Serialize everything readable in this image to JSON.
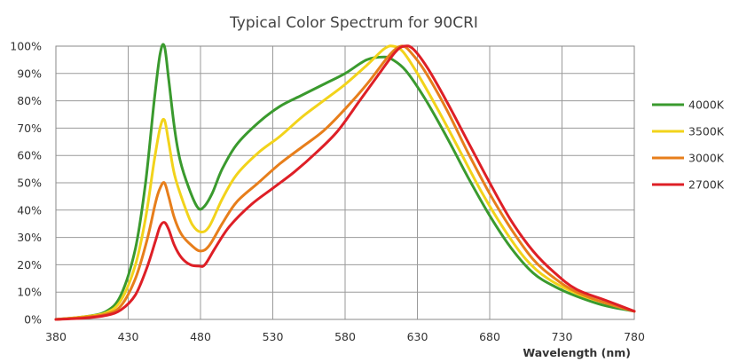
{
  "chart_data": {
    "type": "line",
    "title": "Typical Color Spectrum for 90CRI",
    "xlabel": "Wavelength (nm)",
    "ylabel": "",
    "xlim": [
      380,
      780
    ],
    "ylim": [
      0,
      100
    ],
    "x_ticks": [
      "380",
      "430",
      "480",
      "530",
      "580",
      "630",
      "680",
      "730",
      "780"
    ],
    "y_ticks": [
      "0%",
      "10%",
      "20%",
      "30%",
      "40%",
      "50%",
      "60%",
      "70%",
      "80%",
      "90%",
      "100%"
    ],
    "grid": true,
    "legend_position": "right",
    "series": [
      {
        "name": "4000K",
        "color": "#3a9a2e",
        "points": [
          [
            380,
            0
          ],
          [
            400,
            1
          ],
          [
            415,
            3
          ],
          [
            425,
            9
          ],
          [
            435,
            26
          ],
          [
            442,
            50
          ],
          [
            448,
            80
          ],
          [
            452,
            97
          ],
          [
            455,
            100
          ],
          [
            458,
            88
          ],
          [
            462,
            70
          ],
          [
            466,
            58
          ],
          [
            472,
            48
          ],
          [
            478,
            41
          ],
          [
            482,
            41
          ],
          [
            488,
            46
          ],
          [
            495,
            55
          ],
          [
            505,
            64
          ],
          [
            520,
            72
          ],
          [
            535,
            78
          ],
          [
            550,
            82
          ],
          [
            565,
            86
          ],
          [
            580,
            90
          ],
          [
            595,
            95
          ],
          [
            607,
            96
          ],
          [
            613,
            95
          ],
          [
            622,
            91
          ],
          [
            635,
            81
          ],
          [
            650,
            67
          ],
          [
            665,
            52
          ],
          [
            680,
            38
          ],
          [
            695,
            26
          ],
          [
            710,
            17
          ],
          [
            725,
            12
          ],
          [
            740,
            8.5
          ],
          [
            760,
            5
          ],
          [
            780,
            3
          ]
        ]
      },
      {
        "name": "3500K",
        "color": "#f2d31b",
        "points": [
          [
            380,
            0
          ],
          [
            400,
            1
          ],
          [
            415,
            2.5
          ],
          [
            425,
            7
          ],
          [
            435,
            20
          ],
          [
            442,
            37
          ],
          [
            448,
            58
          ],
          [
            452,
            70
          ],
          [
            455,
            73
          ],
          [
            458,
            65
          ],
          [
            462,
            53
          ],
          [
            468,
            43
          ],
          [
            474,
            35
          ],
          [
            480,
            32
          ],
          [
            486,
            34
          ],
          [
            495,
            44
          ],
          [
            505,
            53
          ],
          [
            520,
            61
          ],
          [
            535,
            67
          ],
          [
            550,
            74
          ],
          [
            565,
            80
          ],
          [
            580,
            86
          ],
          [
            595,
            93
          ],
          [
            607,
            99
          ],
          [
            613,
            100
          ],
          [
            620,
            98
          ],
          [
            630,
            90
          ],
          [
            645,
            76
          ],
          [
            660,
            61
          ],
          [
            675,
            46
          ],
          [
            690,
            33
          ],
          [
            705,
            22
          ],
          [
            720,
            15
          ],
          [
            740,
            9.5
          ],
          [
            760,
            6
          ],
          [
            780,
            3
          ]
        ]
      },
      {
        "name": "3000K",
        "color": "#e77e1b",
        "points": [
          [
            380,
            0
          ],
          [
            400,
            0.8
          ],
          [
            415,
            2
          ],
          [
            425,
            5
          ],
          [
            435,
            15
          ],
          [
            443,
            29
          ],
          [
            449,
            43
          ],
          [
            452,
            48
          ],
          [
            455,
            50
          ],
          [
            458,
            45
          ],
          [
            462,
            37
          ],
          [
            467,
            31
          ],
          [
            474,
            27
          ],
          [
            480,
            25
          ],
          [
            486,
            27
          ],
          [
            495,
            35
          ],
          [
            505,
            43
          ],
          [
            520,
            50
          ],
          [
            535,
            57
          ],
          [
            550,
            63
          ],
          [
            565,
            69
          ],
          [
            580,
            77
          ],
          [
            595,
            86
          ],
          [
            608,
            95
          ],
          [
            615,
            99
          ],
          [
            620,
            100
          ],
          [
            625,
            98
          ],
          [
            635,
            91
          ],
          [
            650,
            77
          ],
          [
            665,
            61
          ],
          [
            680,
            46
          ],
          [
            695,
            33
          ],
          [
            710,
            22
          ],
          [
            725,
            15
          ],
          [
            740,
            10
          ],
          [
            760,
            6
          ],
          [
            780,
            3
          ]
        ]
      },
      {
        "name": "2700K",
        "color": "#de1f26",
        "points": [
          [
            380,
            0
          ],
          [
            400,
            0.5
          ],
          [
            415,
            1.5
          ],
          [
            425,
            3.5
          ],
          [
            435,
            9
          ],
          [
            443,
            19
          ],
          [
            449,
            29
          ],
          [
            452,
            34
          ],
          [
            455,
            35.5
          ],
          [
            458,
            33
          ],
          [
            462,
            27
          ],
          [
            467,
            22.5
          ],
          [
            473,
            20
          ],
          [
            479,
            19.5
          ],
          [
            483,
            20
          ],
          [
            490,
            26
          ],
          [
            500,
            34
          ],
          [
            515,
            42
          ],
          [
            530,
            48
          ],
          [
            545,
            54
          ],
          [
            560,
            61
          ],
          [
            575,
            69
          ],
          [
            590,
            80
          ],
          [
            605,
            91
          ],
          [
            615,
            98
          ],
          [
            621,
            100
          ],
          [
            627,
            99
          ],
          [
            637,
            92
          ],
          [
            650,
            80
          ],
          [
            665,
            65
          ],
          [
            680,
            50
          ],
          [
            695,
            36
          ],
          [
            710,
            25
          ],
          [
            725,
            17
          ],
          [
            740,
            11
          ],
          [
            760,
            7
          ],
          [
            780,
            3
          ]
        ]
      }
    ]
  }
}
